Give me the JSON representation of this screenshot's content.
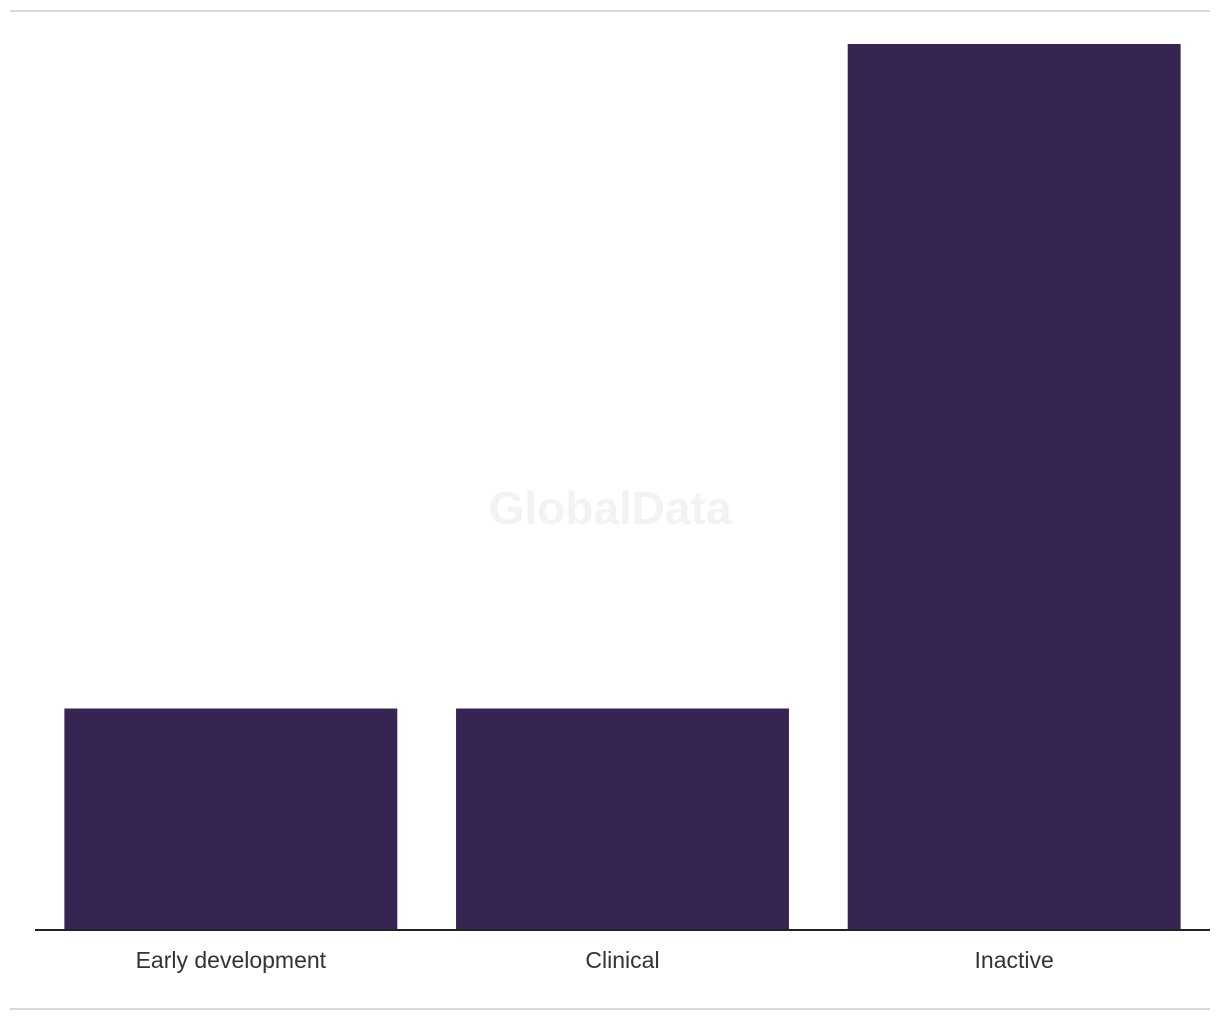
{
  "chart_data": {
    "type": "bar",
    "watermark": "GlobalData",
    "categories": [
      "Early development",
      "Clinical",
      "Inactive"
    ],
    "values": [
      1,
      1,
      4
    ],
    "color": "#362453",
    "ylim": [
      0,
      4
    ]
  }
}
